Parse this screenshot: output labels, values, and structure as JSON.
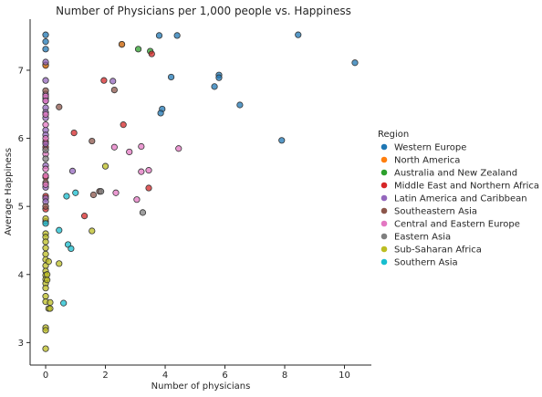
{
  "chart_data": {
    "type": "scatter",
    "title": "Number of Physicians per 1,000 people vs. Happiness",
    "xlabel": "Number of physicians",
    "ylabel": "Average Happiness",
    "xlim": [
      -0.52,
      10.9
    ],
    "ylim": [
      2.67,
      7.75
    ],
    "xticks": [
      0,
      2,
      4,
      6,
      8,
      10
    ],
    "yticks": [
      3,
      4,
      5,
      6,
      7
    ],
    "grid": false,
    "legend": {
      "title": "Region",
      "placement": "right"
    },
    "series": [
      {
        "name": "Western Europe",
        "color": "#1f77b4",
        "points": [
          [
            0,
            7.52
          ],
          [
            0,
            7.42
          ],
          [
            0,
            7.31
          ],
          [
            0,
            7.08
          ],
          [
            2.55,
            7.38
          ],
          [
            3.8,
            7.51
          ],
          [
            4.4,
            7.51
          ],
          [
            8.45,
            7.52
          ],
          [
            10.35,
            7.11
          ],
          [
            4.2,
            6.9
          ],
          [
            5.8,
            6.93
          ],
          [
            5.8,
            6.89
          ],
          [
            5.65,
            6.76
          ],
          [
            3.9,
            6.43
          ],
          [
            3.85,
            6.37
          ],
          [
            6.5,
            6.49
          ],
          [
            7.9,
            5.97
          ]
        ]
      },
      {
        "name": "North America",
        "color": "#ff7f0e",
        "points": [
          [
            2.55,
            7.38
          ],
          [
            0,
            7.07
          ]
        ]
      },
      {
        "name": "Australia and New Zealand",
        "color": "#2ca02c",
        "points": [
          [
            3.1,
            7.31
          ],
          [
            3.5,
            7.28
          ]
        ]
      },
      {
        "name": "Middle East and Northern Africa",
        "color": "#d62728",
        "points": [
          [
            3.55,
            7.24
          ],
          [
            1.95,
            6.85
          ],
          [
            2.6,
            6.2
          ],
          [
            0.95,
            6.08
          ],
          [
            0,
            5.95
          ],
          [
            0,
            5.87
          ],
          [
            3.45,
            5.27
          ],
          [
            1.3,
            4.86
          ],
          [
            0,
            5.43
          ],
          [
            0,
            5.15
          ],
          [
            0,
            4.96
          ]
        ]
      },
      {
        "name": "Latin America and Caribbean",
        "color": "#9467bd",
        "points": [
          [
            0,
            7.12
          ],
          [
            0,
            6.85
          ],
          [
            0,
            6.65
          ],
          [
            0,
            6.59
          ],
          [
            0,
            6.55
          ],
          [
            0,
            6.45
          ],
          [
            0,
            6.38
          ],
          [
            0,
            6.3
          ],
          [
            2.25,
            6.84
          ],
          [
            0.9,
            5.52
          ],
          [
            0,
            6.12
          ],
          [
            0,
            6.05
          ],
          [
            0,
            5.92
          ],
          [
            0,
            5.6
          ],
          [
            0,
            5.28
          ],
          [
            0,
            5.12
          ],
          [
            0,
            5.07
          ]
        ]
      },
      {
        "name": "Southeastern Asia",
        "color": "#8c564b",
        "points": [
          [
            0,
            6.7
          ],
          [
            2.3,
            6.71
          ],
          [
            0.45,
            6.46
          ],
          [
            1.55,
            5.96
          ],
          [
            1.6,
            5.17
          ],
          [
            1.8,
            5.22
          ],
          [
            0,
            5.35
          ],
          [
            0,
            5.0
          ],
          [
            0,
            4.78
          ]
        ]
      },
      {
        "name": "Central and Eastern Europe",
        "color": "#e377c2",
        "points": [
          [
            0,
            6.62
          ],
          [
            0,
            6.55
          ],
          [
            0,
            6.35
          ],
          [
            0,
            6.2
          ],
          [
            2.3,
            5.87
          ],
          [
            3.2,
            5.88
          ],
          [
            4.45,
            5.85
          ],
          [
            2.8,
            5.8
          ],
          [
            3.2,
            5.51
          ],
          [
            3.45,
            5.53
          ],
          [
            2.35,
            5.2
          ],
          [
            3.05,
            5.1
          ],
          [
            0,
            6.0
          ],
          [
            0,
            5.77
          ],
          [
            0,
            5.55
          ],
          [
            0,
            5.45
          ],
          [
            0,
            5.32
          ]
        ]
      },
      {
        "name": "Eastern Asia",
        "color": "#7f7f7f",
        "points": [
          [
            3.25,
            4.91
          ],
          [
            1.85,
            5.22
          ],
          [
            0,
            5.7
          ],
          [
            0,
            5.83
          ]
        ]
      },
      {
        "name": "Sub-Saharan Africa",
        "color": "#bcbd22",
        "points": [
          [
            2.0,
            5.59
          ],
          [
            1.55,
            4.64
          ],
          [
            0.45,
            4.16
          ],
          [
            0,
            4.82
          ],
          [
            0,
            4.6
          ],
          [
            0,
            4.55
          ],
          [
            0,
            4.48
          ],
          [
            0,
            4.39
          ],
          [
            0,
            4.3
          ],
          [
            0,
            4.22
          ],
          [
            0,
            4.13
          ],
          [
            0,
            4.05
          ],
          [
            0,
            3.99
          ],
          [
            0,
            3.93
          ],
          [
            0,
            3.87
          ],
          [
            0,
            3.8
          ],
          [
            0.05,
            3.92
          ],
          [
            0.1,
            4.19
          ],
          [
            0.05,
            4.0
          ],
          [
            0,
            3.68
          ],
          [
            0,
            3.6
          ],
          [
            0.1,
            3.5
          ],
          [
            0.15,
            3.5
          ],
          [
            0.15,
            3.59
          ],
          [
            0,
            3.22
          ],
          [
            0,
            3.18
          ],
          [
            0,
            2.91
          ]
        ]
      },
      {
        "name": "Southern Asia",
        "color": "#17becf",
        "points": [
          [
            0.7,
            5.15
          ],
          [
            1.0,
            5.2
          ],
          [
            0.45,
            4.65
          ],
          [
            0.75,
            4.44
          ],
          [
            0.85,
            4.38
          ],
          [
            0.6,
            3.58
          ],
          [
            0,
            4.75
          ]
        ]
      }
    ]
  }
}
